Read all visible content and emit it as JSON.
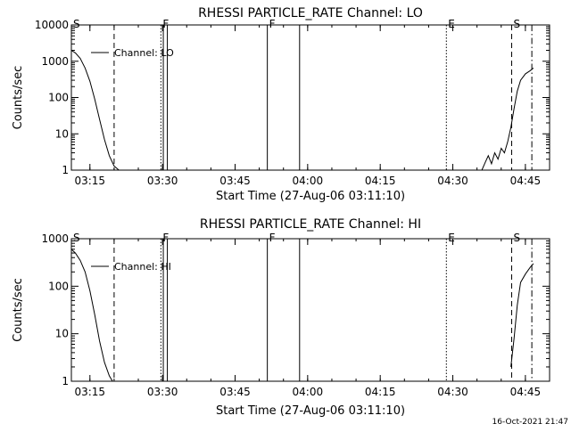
{
  "footer_timestamp": "16-Oct-2021 21:47",
  "colors": {
    "background": "#ffffff",
    "ink": "#000000"
  },
  "chart_data": [
    {
      "type": "line",
      "title": "RHESSI PARTICLE_RATE Channel: LO",
      "xlabel": "Start Time (27-Aug-06 03:11:10)",
      "ylabel": "Counts/sec",
      "yscale": "log",
      "ylim": [
        1,
        10000
      ],
      "xlim": [
        "03:11:10",
        "04:50:00"
      ],
      "x_ticks": [
        "03:15",
        "03:30",
        "03:45",
        "04:00",
        "04:15",
        "04:30",
        "04:45"
      ],
      "y_ticks": [
        "1",
        "10",
        "100",
        "1000",
        "10000"
      ],
      "legend": {
        "position": "top-left",
        "entries": [
          "Channel: LO"
        ]
      },
      "grid": false,
      "series": [
        {
          "name": "Channel: LO",
          "x": [
            "03:11:10",
            "03:12:00",
            "03:13:00",
            "03:14:00",
            "03:15:00",
            "03:16:00",
            "03:17:00",
            "03:18:00",
            "03:19:00",
            "03:20:00",
            "03:21:00",
            "04:36:00",
            "04:36:40",
            "04:37:20",
            "04:38:00",
            "04:38:40",
            "04:39:20",
            "04:40:00",
            "04:40:40",
            "04:41:20",
            "04:42:00",
            "04:42:40",
            "04:43:20",
            "04:44:00",
            "04:45:00",
            "04:46:00",
            "04:46:40"
          ],
          "y": [
            2000,
            1700,
            1200,
            650,
            280,
            90,
            25,
            7,
            2.5,
            1.3,
            1,
            1,
            1.6,
            2.5,
            1.5,
            3,
            2,
            4,
            3,
            6,
            15,
            50,
            150,
            300,
            450,
            550,
            650
          ]
        }
      ],
      "markers": [
        {
          "label": "S",
          "time": "03:11:10",
          "style": "dashed"
        },
        {
          "label": "",
          "time": "03:20:00",
          "style": "dashed"
        },
        {
          "label": "F",
          "time": "03:29:40",
          "style": "dotted"
        },
        {
          "label": "",
          "time": "03:30:10",
          "style": "solid"
        },
        {
          "label": "",
          "time": "03:31:00",
          "style": "solid"
        },
        {
          "label": "F",
          "time": "03:51:40",
          "style": "solid"
        },
        {
          "label": "",
          "time": "03:58:20",
          "style": "solid"
        },
        {
          "label": "E",
          "time": "04:28:40",
          "style": "dotted"
        },
        {
          "label": "S",
          "time": "04:42:10",
          "style": "dashed"
        },
        {
          "label": "",
          "time": "04:46:20",
          "style": "dashdot"
        }
      ]
    },
    {
      "type": "line",
      "title": "RHESSI PARTICLE_RATE Channel: HI",
      "xlabel": "Start Time (27-Aug-06 03:11:10)",
      "ylabel": "Counts/sec",
      "yscale": "log",
      "ylim": [
        1,
        1000
      ],
      "xlim": [
        "03:11:10",
        "04:50:00"
      ],
      "x_ticks": [
        "03:15",
        "03:30",
        "03:45",
        "04:00",
        "04:15",
        "04:30",
        "04:45"
      ],
      "y_ticks": [
        "1",
        "10",
        "100",
        "1000"
      ],
      "legend": {
        "position": "top-left",
        "entries": [
          "Channel: HI"
        ]
      },
      "grid": false,
      "series": [
        {
          "name": "Channel: HI",
          "x": [
            "03:11:10",
            "03:12:00",
            "03:13:00",
            "03:14:00",
            "03:15:00",
            "03:16:00",
            "03:17:00",
            "03:18:00",
            "03:19:00",
            "03:19:40",
            "04:42:00",
            "04:42:40",
            "04:43:20",
            "04:44:00",
            "04:45:00",
            "04:46:00",
            "04:46:40"
          ],
          "y": [
            600,
            500,
            350,
            200,
            80,
            25,
            7,
            2.5,
            1.3,
            1,
            2,
            8,
            40,
            120,
            180,
            250,
            300
          ]
        }
      ],
      "markers": [
        {
          "label": "S",
          "time": "03:11:10",
          "style": "dashed"
        },
        {
          "label": "",
          "time": "03:20:00",
          "style": "dashed"
        },
        {
          "label": "F",
          "time": "03:29:40",
          "style": "dotted"
        },
        {
          "label": "",
          "time": "03:30:10",
          "style": "solid"
        },
        {
          "label": "",
          "time": "03:31:00",
          "style": "solid"
        },
        {
          "label": "F",
          "time": "03:51:40",
          "style": "solid"
        },
        {
          "label": "",
          "time": "03:58:20",
          "style": "solid"
        },
        {
          "label": "E",
          "time": "04:28:40",
          "style": "dotted"
        },
        {
          "label": "S",
          "time": "04:42:10",
          "style": "dashed"
        },
        {
          "label": "",
          "time": "04:46:20",
          "style": "dashdot"
        }
      ]
    }
  ]
}
